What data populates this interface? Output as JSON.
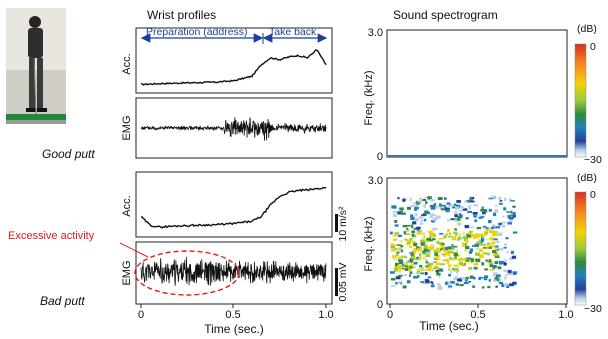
{
  "chart_data": [
    {
      "type": "line",
      "panel_title": "Wrist profiles",
      "row_label": "Good putt",
      "signals": [
        {
          "name": "Acc.",
          "shape": "rise at ~0.65 s from baseline to plateau, slight peak near 0.95 s"
        },
        {
          "name": "EMG",
          "shape": "low noise with burst between 0.45 s and 0.7 s"
        }
      ],
      "phase_annotations": [
        {
          "label": "Preparation (address)",
          "from": 0.0,
          "to": 0.65
        },
        {
          "label": "Take back",
          "from": 0.65,
          "to": 1.0
        }
      ],
      "xlim": [
        0.0,
        1.0
      ],
      "acc_profile": {
        "t": [
          0,
          0.1,
          0.2,
          0.3,
          0.4,
          0.5,
          0.55,
          0.6,
          0.65,
          0.7,
          0.75,
          0.8,
          0.85,
          0.9,
          0.95,
          1.0
        ],
        "v": [
          0.12,
          0.14,
          0.15,
          0.16,
          0.17,
          0.2,
          0.25,
          0.3,
          0.55,
          0.7,
          0.66,
          0.72,
          0.75,
          0.7,
          0.88,
          0.55
        ]
      },
      "emg_bursts": [
        {
          "from": 0.0,
          "to": 0.45,
          "amp": 0.1
        },
        {
          "from": 0.45,
          "to": 0.7,
          "amp": 0.55
        },
        {
          "from": 0.7,
          "to": 1.0,
          "amp": 0.22
        }
      ]
    },
    {
      "type": "line",
      "row_label": "Bad putt",
      "xlabel": "Time (sec.)",
      "xticks": [
        "0",
        "0.5",
        "1.0"
      ],
      "xlim": [
        0.0,
        1.0
      ],
      "annotation": "Excessive activity",
      "scale_bars": {
        "acc": "10 m/s²",
        "emg": "0.05 mV"
      },
      "acc_profile": {
        "t": [
          0,
          0.05,
          0.1,
          0.2,
          0.3,
          0.4,
          0.5,
          0.6,
          0.65,
          0.7,
          0.75,
          0.8,
          0.85,
          0.9,
          0.95,
          1.0
        ],
        "v": [
          0.3,
          0.15,
          0.12,
          0.14,
          0.15,
          0.16,
          0.18,
          0.22,
          0.3,
          0.5,
          0.65,
          0.72,
          0.75,
          0.76,
          0.78,
          0.8
        ]
      },
      "emg_bursts": [
        {
          "from": 0.0,
          "to": 0.5,
          "amp": 0.6
        },
        {
          "from": 0.5,
          "to": 1.0,
          "amp": 0.5
        }
      ]
    },
    {
      "type": "heatmap",
      "panel_title": "Sound spectrogram",
      "row_label": "Good putt",
      "ylabel": "Freq. (kHz)",
      "yticks": [
        "0",
        "3.0"
      ],
      "ylim": [
        0,
        3.0
      ],
      "xlim": [
        0.0,
        1.0
      ],
      "colorbar": {
        "label": "(dB)",
        "max": "0",
        "min": "−30",
        "colors": [
          "#d7301f",
          "#f58a1f",
          "#f4d10a",
          "#9ccd3a",
          "#2e8b3a",
          "#1f7fbf",
          "#233f9a",
          "#ffffff"
        ]
      },
      "content": "no sound energy (blank)"
    },
    {
      "type": "heatmap",
      "row_label": "Bad putt",
      "ylabel": "Freq. (kHz)",
      "xlabel": "Time (sec.)",
      "xticks": [
        "0",
        "0.5",
        "1.0"
      ],
      "yticks": [
        "0",
        "3.0"
      ],
      "ylim": [
        0,
        3.0
      ],
      "xlim": [
        0.0,
        1.0
      ],
      "colorbar": {
        "label": "(dB)",
        "max": "0",
        "min": "−30"
      },
      "content": "broadband energy 0.5–2.5 kHz between 0 and 0.65 s, strongest 0.8–1.6 kHz"
    }
  ],
  "labels": {
    "wrist_title": "Wrist profiles",
    "sound_title": "Sound spectrogram",
    "good": "Good putt",
    "bad": "Bad putt",
    "acc": "Acc.",
    "emg": "EMG",
    "prep": "Preparation (address)",
    "takeback": "Take back",
    "excess": "Excessive activity",
    "time": "Time (sec.)",
    "freq": "Freq. (kHz)",
    "db": "(dB)",
    "db_max": "0",
    "db_min": "−30",
    "x0": "0",
    "x05": "0.5",
    "x1": "1.0",
    "y0": "0",
    "y3": "3.0",
    "scale_acc": "10 m/s²",
    "scale_emg": "0.05 mV"
  },
  "colors": {
    "accent_red": "#e21b1b",
    "arrow_blue": "#1a3f9c",
    "trace": "#111111"
  }
}
